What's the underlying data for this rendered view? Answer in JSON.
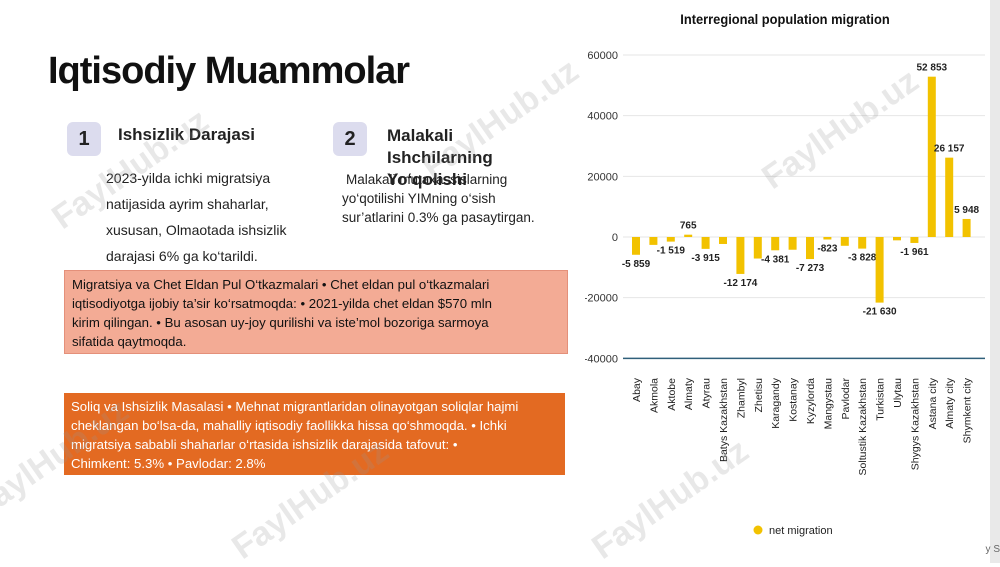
{
  "slide": {
    "title": "Iqtisodiy Muammolar",
    "point1": {
      "number": "1",
      "title": "Ishsizlik Darajasi",
      "text": [
        "2023-yilda ichki migratsiya",
        "natijasida ayrim shaharlar,",
        "xususan, Olmaotada ishsizlik",
        "darajasi 6% ga ko‘tarildi."
      ]
    },
    "point2": {
      "number": "2",
      "title": [
        "Malakali",
        "Ishchilarning",
        "Yo‘qolishi"
      ],
      "text": [
        "Malakali mutaxassislarning",
        "yo‘qotilishi YIMning o‘sish",
        "sur’atlarini 0.3% ga pasaytirgan."
      ]
    },
    "box1": [
      "Migratsiya va Chet Eldan Pul O‘tkazmalari • Chet eldan pul o‘tkazmalari",
      "iqtisodiyotga ijobiy ta’sir ko‘rsatmoqda: • 2021-yilda chet eldan $570 mln",
      "kirim qilingan. • Bu asosan uy-joy qurilishi va iste’mol bozoriga sarmoya",
      "sifatida qaytmoqda."
    ],
    "box2": [
      "Soliq va Ishsizlik Masalasi • Mehnat migrantlaridan olinayotgan soliqlar hajmi",
      "cheklangan bo‘lsa-da, mahalliy iqtisodiy faollikka hissa qo‘shmoqda. • Ichki",
      "migratsiya sababli shaharlar o‘rtasida ishsizlik darajasida tafovut: •",
      "Chimkent: 5.3% • Pavlodar: 2.8%"
    ],
    "watermark": "FaylHub.uz",
    "edge_text": "y S"
  },
  "colors": {
    "bar": "#f2c200",
    "zero_line": "#2f5f7a",
    "box1_bg": "#f3ab95",
    "box2_bg": "#e36a22"
  },
  "chart_data": {
    "type": "bar",
    "title": "Interregional population migration",
    "categories": [
      "Abay",
      "Akmola",
      "Aktobe",
      "Almaty",
      "Atyrau",
      "Batys Kazakhstan",
      "Zhambyl",
      "Zhetisu",
      "Karagandy",
      "Kostanay",
      "Kyzylorda",
      "Mangystau",
      "Pavlodar",
      "Soltustik Kazakhstan",
      "Turkistan",
      "Ulytau",
      "Shygys Kazakhstan",
      "Astana city",
      "Almaty city",
      "Shymkent city"
    ],
    "values": [
      -5859,
      -2600,
      -1519,
      765,
      -3915,
      -2300,
      -12174,
      -7100,
      -4381,
      -4200,
      -7273,
      -823,
      -2900,
      -3828,
      -21630,
      -1100,
      -1961,
      52853,
      26157,
      5948
    ],
    "labels": [
      "-5 859",
      "",
      "-1 519",
      "765",
      "-3 915",
      "",
      "-12 174",
      "",
      "-4 381",
      "",
      "-7 273",
      "-823",
      "",
      "-3 828",
      "-21 630",
      "",
      "-1 961",
      "52 853",
      "26 157",
      "5 948"
    ],
    "yticks": [
      "60000",
      "40000",
      "20000",
      "0",
      "-20000",
      "-40000"
    ],
    "ylim": [
      -40000,
      60000
    ],
    "legend": "net migration",
    "legend_position": "bottom",
    "grid": true
  }
}
